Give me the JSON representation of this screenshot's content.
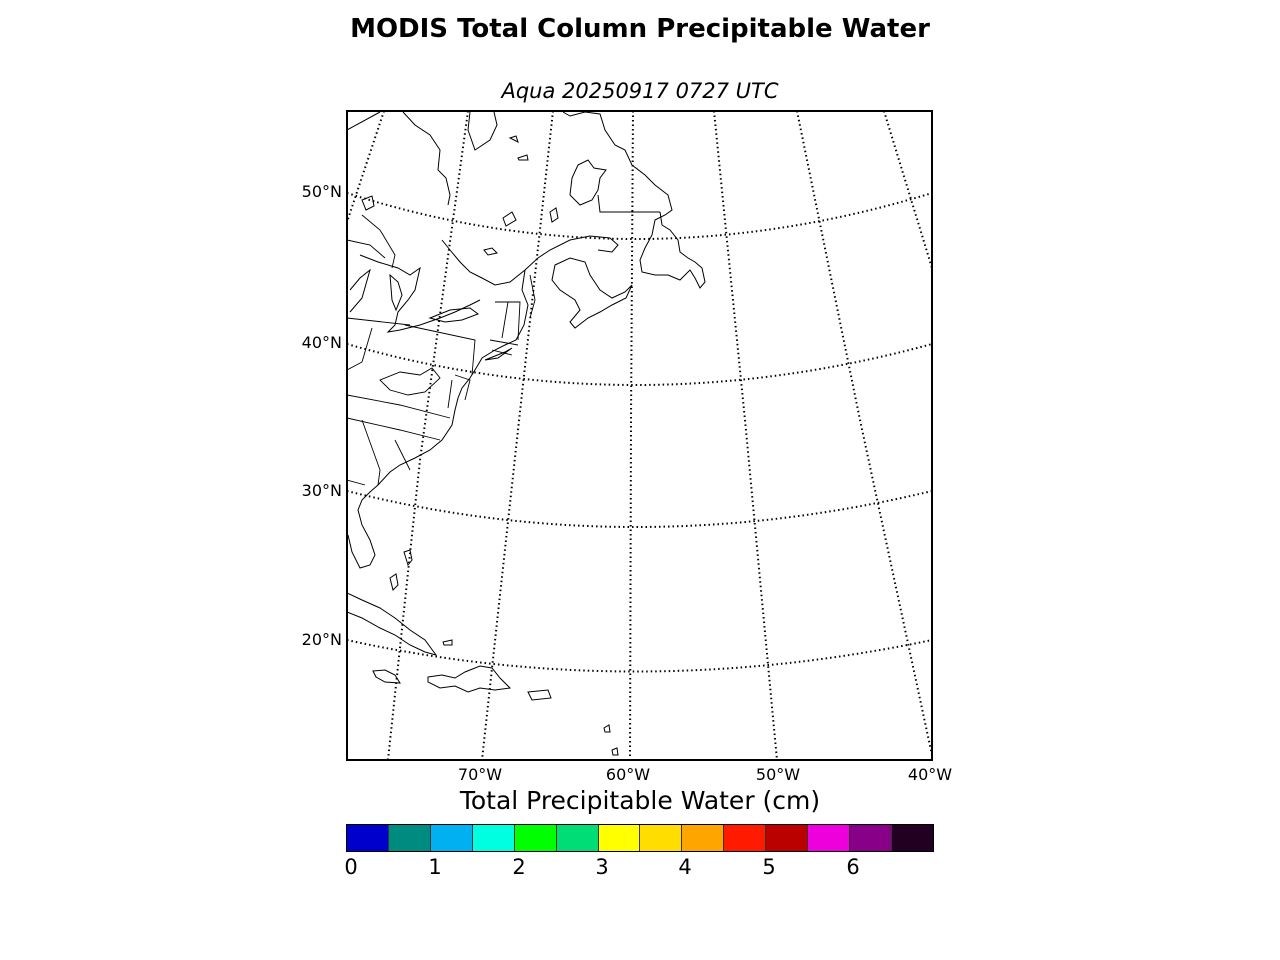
{
  "title": "MODIS Total Column Precipitable Water",
  "subtitle": "Aqua 20250917 0727 UTC",
  "map": {
    "latitude_labels": [
      "50°N",
      "40°N",
      "30°N",
      "20°N"
    ],
    "longitude_labels": [
      "70°W",
      "60°W",
      "50°W",
      "40°W"
    ],
    "grid_style": "dotted",
    "region": "Northwest Atlantic and eastern North America",
    "precipitable_water_field": "none shown"
  },
  "colorbar": {
    "label": "Total Precipitable Water (cm)",
    "colors": [
      "#0000cc",
      "#008b80",
      "#00b0f0",
      "#00ffe0",
      "#00ff00",
      "#00dd77",
      "#ffff00",
      "#ffdd00",
      "#ffa500",
      "#ff1a00",
      "#bb0000",
      "#ee00dd",
      "#880088",
      "#220022"
    ],
    "ticks": [
      "0",
      "1",
      "2",
      "3",
      "4",
      "5",
      "6"
    ]
  }
}
